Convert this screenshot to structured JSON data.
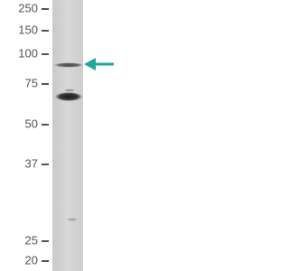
{
  "markers": [
    "250",
    "150",
    "100",
    "75",
    "50",
    "37",
    "25",
    "20"
  ]
}
